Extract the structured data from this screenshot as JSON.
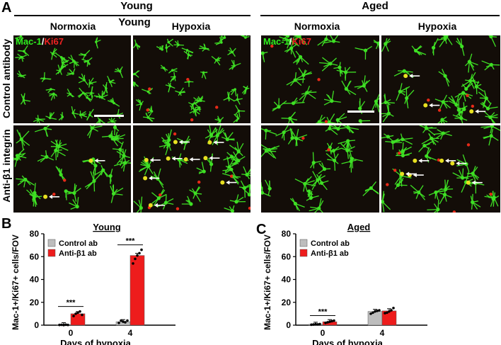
{
  "panel_a": {
    "letter": "A",
    "group_left": "Young",
    "group_right": "Aged",
    "young_columns": [
      "Normoxia",
      "Hypoxia"
    ],
    "young_middle_label": "Young",
    "aged_columns": [
      "Normoxia",
      "Hypoxia"
    ],
    "row_labels": [
      "Control antibody",
      "Anti-β1 integrin"
    ],
    "stain_green": "Mac-1",
    "stain_sep": "/",
    "stain_red": "Ki67",
    "arrow_counts": {
      "young_hyp_ctrl": 0,
      "young_norm_anti": 2,
      "young_hyp_anti": 9,
      "aged_hyp_ctrl": 3,
      "aged_hyp_anti": 6
    },
    "colors": {
      "microglia": "#3ee024",
      "ki67": "#e82a18",
      "background": "#140e08"
    }
  },
  "chart_data": [
    {
      "panel": "B",
      "type": "bar",
      "title": "Young",
      "categories": [
        "0",
        "4"
      ],
      "series": [
        {
          "name": "Control ab",
          "color": "#bdbdbd",
          "values": [
            0.3,
            3
          ],
          "points": [
            [
              0.2,
              0.3,
              0.1,
              0.4,
              0.2
            ],
            [
              2,
              4,
              3,
              2.5,
              4
            ]
          ]
        },
        {
          "name": "Anti-β1 ab",
          "color": "#ee1c1c",
          "values": [
            10,
            61
          ],
          "points": [
            [
              8,
              10,
              11,
              12,
              9
            ],
            [
              54,
              58,
              61,
              63,
              66
            ]
          ]
        }
      ],
      "significance": [
        {
          "category": "0",
          "label": "***"
        },
        {
          "category": "4",
          "label": "***"
        }
      ],
      "xlabel": "Days of hypoxia",
      "ylabel": "Mac-1+/Ki67+ cells/FOV",
      "ylim": [
        0,
        80
      ],
      "yticks": [
        "0",
        "20",
        "40",
        "60",
        "80"
      ],
      "legend": "top-left"
    },
    {
      "panel": "C",
      "type": "bar",
      "title": "Aged",
      "categories": [
        "0",
        "4"
      ],
      "series": [
        {
          "name": "Control ab",
          "color": "#bdbdbd",
          "values": [
            0.7,
            12
          ],
          "points": [
            [
              0.4,
              0.6,
              0.8,
              0.7,
              1.0
            ],
            [
              10,
              11,
              12,
              12.5,
              13
            ]
          ]
        },
        {
          "name": "Anti-β1 ab",
          "color": "#ee1c1c",
          "values": [
            3,
            12.5
          ],
          "points": [
            [
              2,
              2.5,
              3,
              3.5,
              4
            ],
            [
              10.5,
              11,
              12,
              13,
              15
            ]
          ]
        }
      ],
      "significance": [
        {
          "category": "0",
          "label": "***"
        }
      ],
      "xlabel": "Days of hypoxia",
      "ylabel": "Mac-1+/Ki67+ cells/FOV",
      "ylim": [
        0,
        80
      ],
      "yticks": [
        "0",
        "20",
        "40",
        "60",
        "80"
      ],
      "legend": "top-left"
    }
  ]
}
